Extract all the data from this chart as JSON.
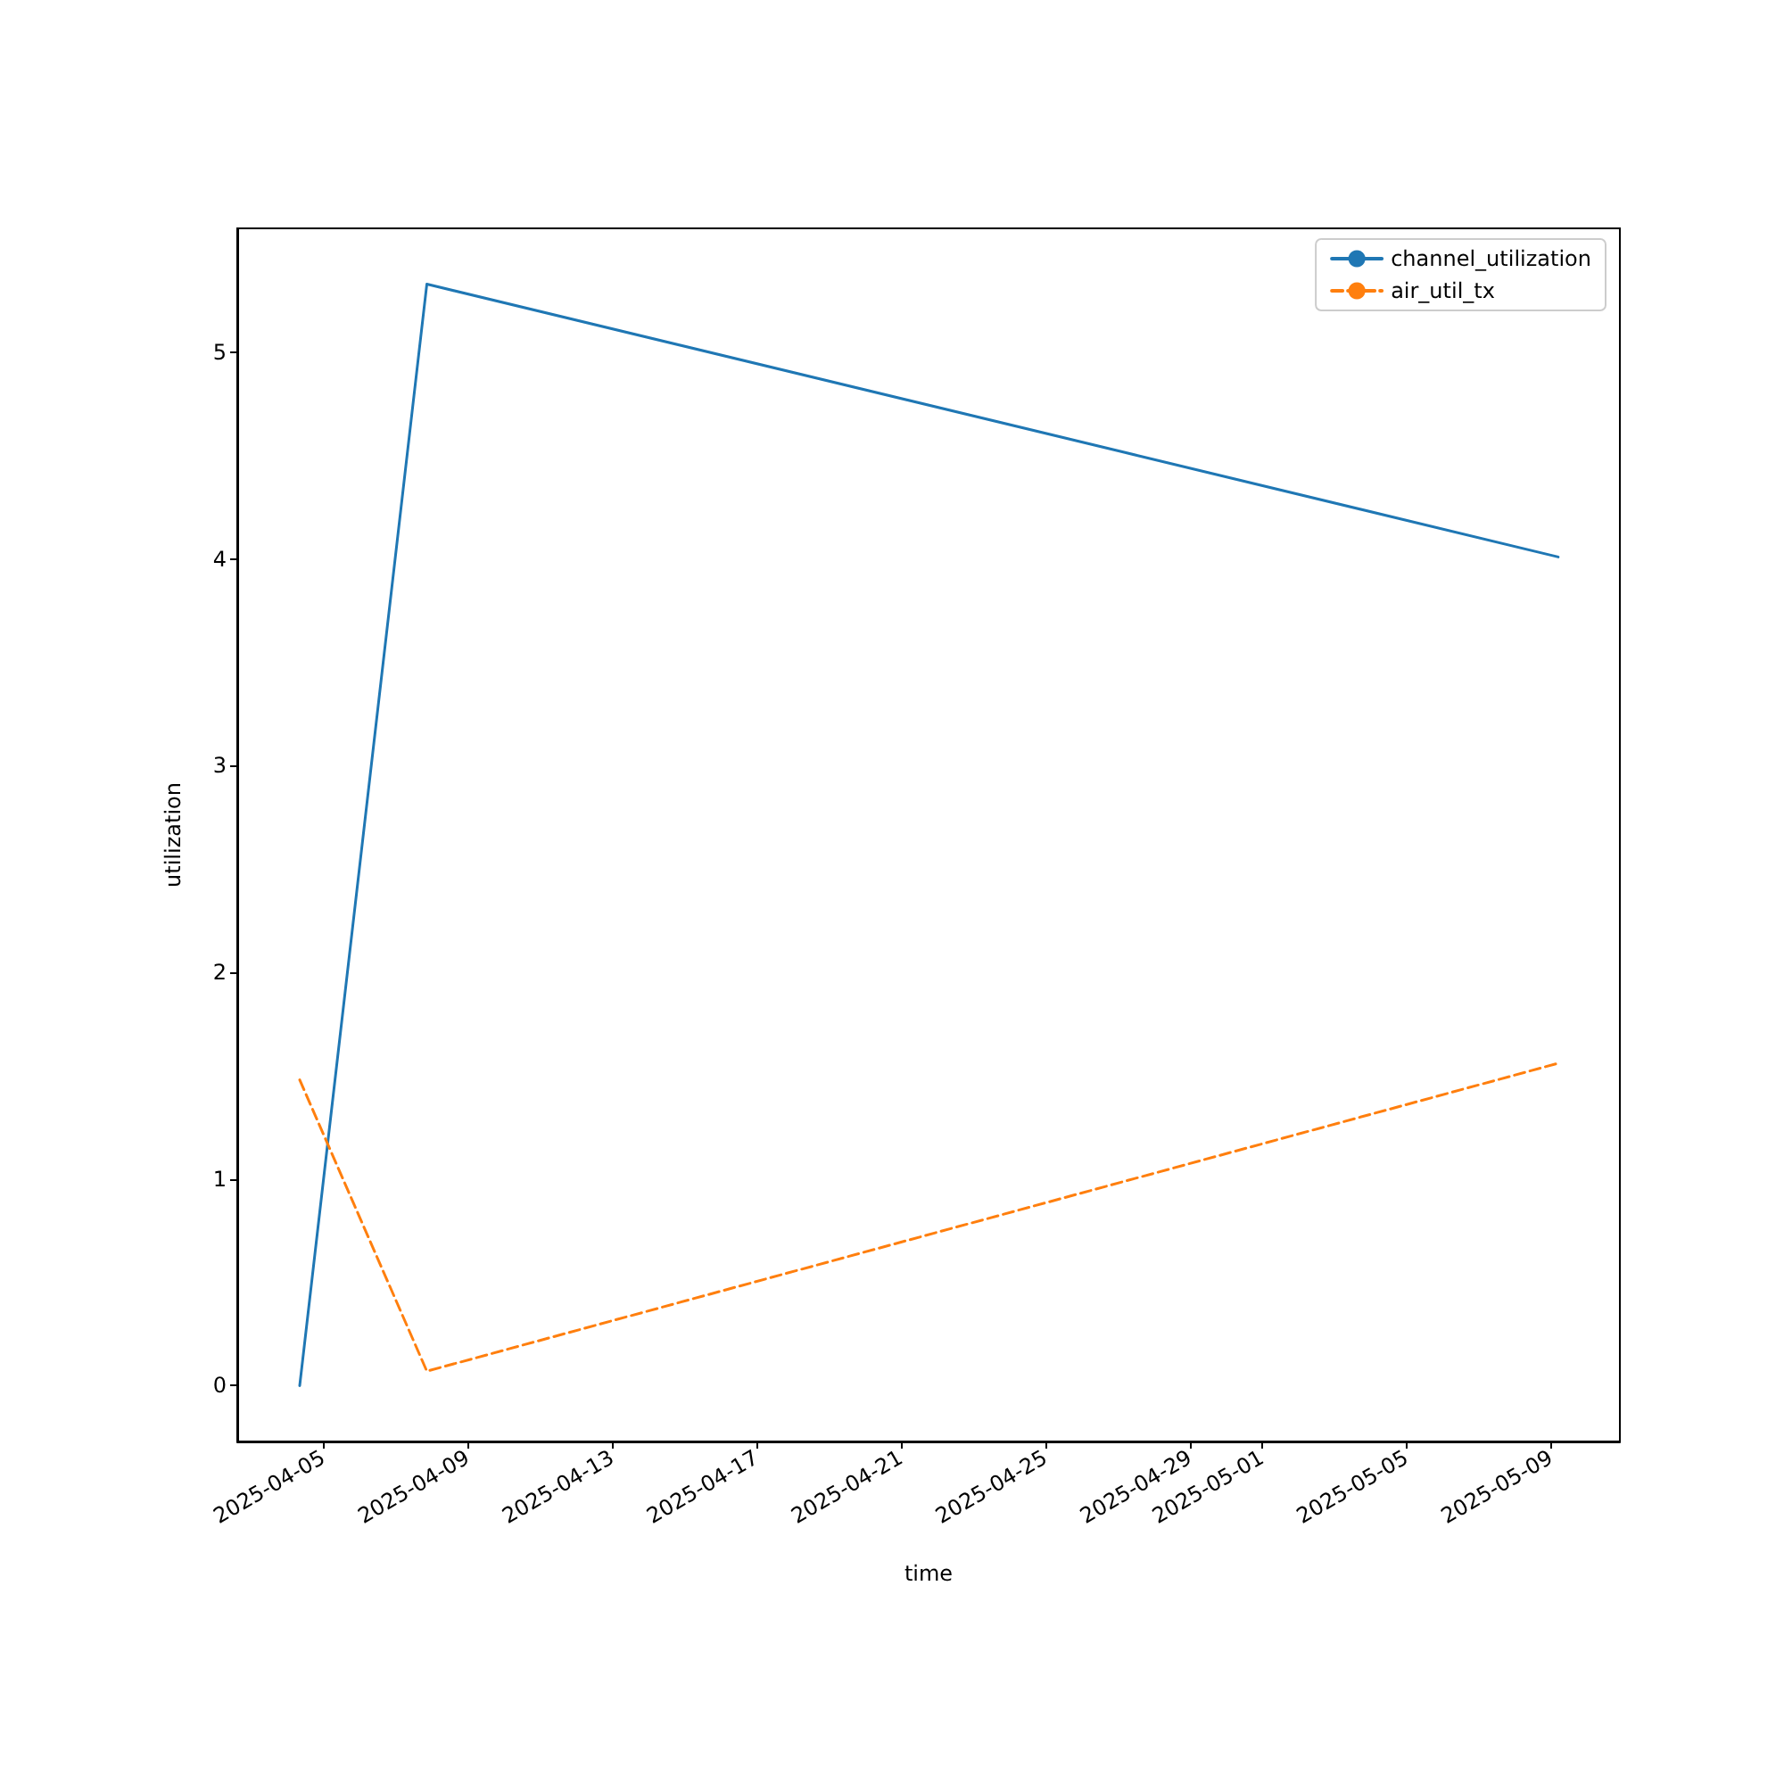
{
  "chart_data": {
    "type": "line",
    "xlabel": "time",
    "ylabel": "utilization",
    "x": [
      "2025-04-04T08:30",
      "2025-04-07T21:00",
      "2025-05-09T05:00"
    ],
    "series": [
      {
        "name": "channel_utilization",
        "color": "#1f77b4",
        "values": [
          0,
          5.33,
          4.01
        ],
        "line_style": "solid"
      },
      {
        "name": "air_util_tx",
        "color": "#ff7f0e",
        "values": [
          1.48,
          0.07,
          1.56
        ],
        "line_style": "dashed"
      }
    ],
    "xlim": [
      "2025-04-02T15:00",
      "2025-05-10T22:00"
    ],
    "xticks": [
      "2025-04-05",
      "2025-04-09",
      "2025-04-13",
      "2025-04-17",
      "2025-04-21",
      "2025-04-25",
      "2025-04-29",
      "2025-05-01",
      "2025-05-05",
      "2025-05-09"
    ],
    "ylim": [
      -0.27,
      5.6
    ],
    "yticks": [
      0,
      1,
      2,
      3,
      4,
      5
    ],
    "grid": false,
    "legend": "top right",
    "marker": "none"
  }
}
